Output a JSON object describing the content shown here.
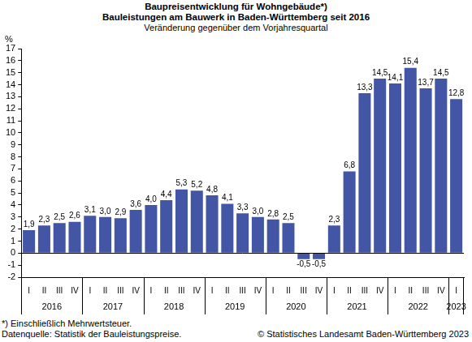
{
  "chart_data": {
    "type": "bar",
    "title": [
      "Baupreisentwicklung für Wohngebäude*)",
      "Bauleistungen am Bauwerk in Baden-Württemberg seit 2016"
    ],
    "subtitle": "Veränderung gegenüber dem Vorjahresquartal",
    "y_label": "%",
    "footnotes": [
      "*) Einschließlich Mehrwertsteuer.",
      "Datenquelle: Statistik der Bauleistungspreise."
    ],
    "source": "© Statistisches Landesamt Baden-Württemberg 2023",
    "categories": [
      {
        "quarter": "I",
        "year": "2016"
      },
      {
        "quarter": "II",
        "year": "2016"
      },
      {
        "quarter": "III",
        "year": "2016"
      },
      {
        "quarter": "IV",
        "year": "2016"
      },
      {
        "quarter": "I",
        "year": "2017"
      },
      {
        "quarter": "II",
        "year": "2017"
      },
      {
        "quarter": "III",
        "year": "2017"
      },
      {
        "quarter": "IV",
        "year": "2017"
      },
      {
        "quarter": "I",
        "year": "2018"
      },
      {
        "quarter": "II",
        "year": "2018"
      },
      {
        "quarter": "III",
        "year": "2018"
      },
      {
        "quarter": "IV",
        "year": "2018"
      },
      {
        "quarter": "I",
        "year": "2019"
      },
      {
        "quarter": "II",
        "year": "2019"
      },
      {
        "quarter": "III",
        "year": "2019"
      },
      {
        "quarter": "IV",
        "year": "2019"
      },
      {
        "quarter": "I",
        "year": "2020"
      },
      {
        "quarter": "II",
        "year": "2020"
      },
      {
        "quarter": "III",
        "year": "2020"
      },
      {
        "quarter": "IV",
        "year": "2020"
      },
      {
        "quarter": "I",
        "year": "2021"
      },
      {
        "quarter": "II",
        "year": "2021"
      },
      {
        "quarter": "III",
        "year": "2021"
      },
      {
        "quarter": "IV",
        "year": "2021"
      },
      {
        "quarter": "I",
        "year": "2022"
      },
      {
        "quarter": "II",
        "year": "2022"
      },
      {
        "quarter": "III",
        "year": "2022"
      },
      {
        "quarter": "IV",
        "year": "2022"
      },
      {
        "quarter": "I",
        "year": "2023"
      }
    ],
    "values": [
      1.9,
      2.3,
      2.5,
      2.6,
      3.1,
      3.0,
      2.9,
      3.6,
      4.0,
      4.4,
      5.3,
      5.2,
      4.8,
      4.1,
      3.3,
      3.0,
      2.8,
      2.5,
      -0.5,
      -0.5,
      2.3,
      6.8,
      13.3,
      14.5,
      14.1,
      15.4,
      13.7,
      14.5,
      12.8
    ],
    "value_labels": [
      "1,9",
      "2,3",
      "2,5",
      "2,6",
      "3,1",
      "3,0",
      "2,9",
      "3,6",
      "4,0",
      "4,4",
      "5,3",
      "5,2",
      "4,8",
      "4,1",
      "3,3",
      "3,0",
      "2,8",
      "2,5",
      "-0,5",
      "-0,5",
      "2,3",
      "6,8",
      "13,3",
      "14,5",
      "14,1",
      "15,4",
      "13,7",
      "14,5",
      "12,8"
    ],
    "color": "#4355a5",
    "ylim": [
      -2,
      17
    ],
    "yticks": [
      -2,
      -1,
      0,
      1,
      2,
      3,
      4,
      5,
      6,
      7,
      8,
      9,
      10,
      11,
      12,
      13,
      14,
      15,
      16,
      17
    ],
    "grid": false,
    "data_labels": true
  }
}
